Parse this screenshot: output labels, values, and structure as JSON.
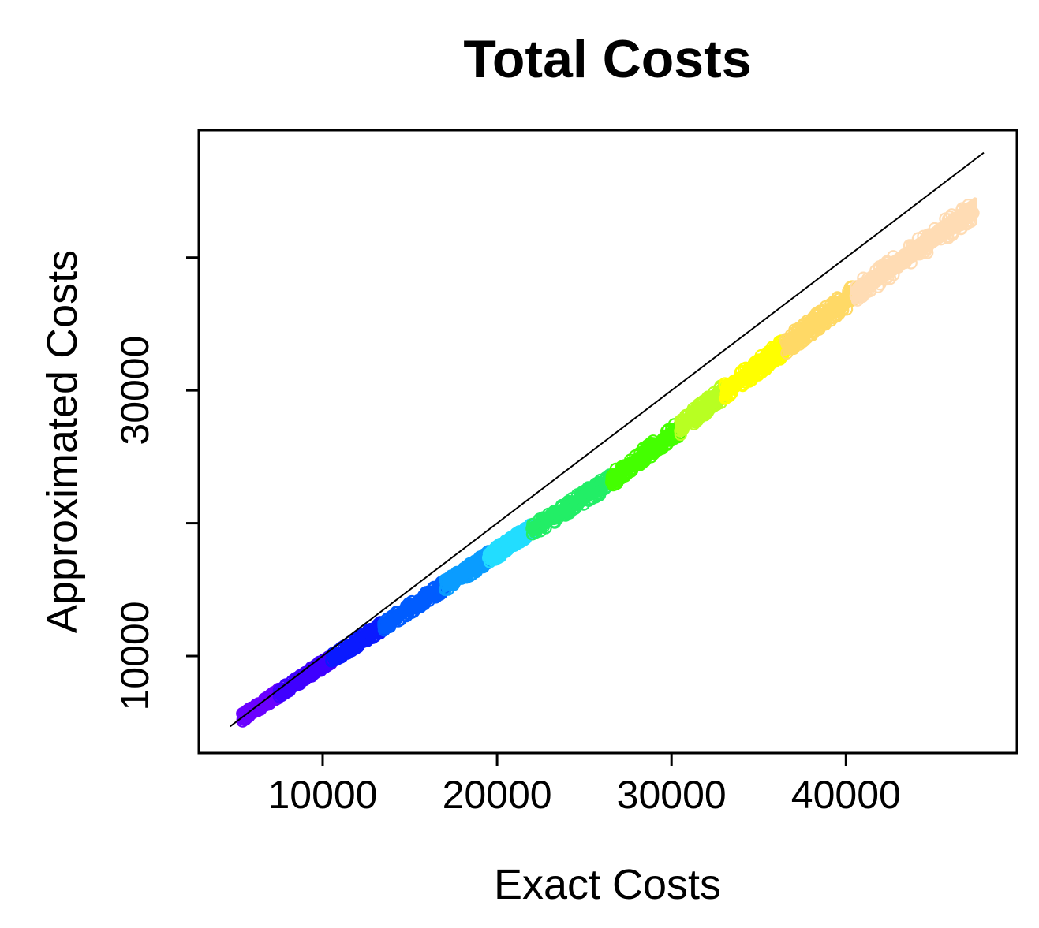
{
  "chart_data": {
    "type": "scatter",
    "title": "Total Costs",
    "xlabel": "Exact Costs",
    "ylabel": "Approximated Costs",
    "xlim": [
      2900,
      49800
    ],
    "ylim": [
      2700,
      49600
    ],
    "x_ticks": [
      10000,
      20000,
      30000,
      40000
    ],
    "x_tick_labels": [
      "10000",
      "20000",
      "30000",
      "40000"
    ],
    "y_ticks": [
      10000,
      20000,
      30000,
      40000
    ],
    "y_tick_labels": [
      "10000",
      "",
      "30000",
      ""
    ],
    "reference_line": {
      "type": "identity",
      "from": 4700,
      "to": 47900,
      "color": "#000000"
    },
    "point_bands": [
      {
        "x_range": [
          5400,
          7500
        ],
        "y_range": [
          5400,
          7200
        ],
        "color": "#6a00ff"
      },
      {
        "x_range": [
          7500,
          10500
        ],
        "y_range": [
          7200,
          9800
        ],
        "color": "#3f00ff"
      },
      {
        "x_range": [
          10500,
          13500
        ],
        "y_range": [
          9800,
          12300
        ],
        "color": "#0a1aff"
      },
      {
        "x_range": [
          13500,
          17000
        ],
        "y_range": [
          12300,
          15300
        ],
        "color": "#005cff"
      },
      {
        "x_range": [
          17000,
          19500
        ],
        "y_range": [
          15300,
          17400
        ],
        "color": "#0a9cff"
      },
      {
        "x_range": [
          19500,
          22000
        ],
        "y_range": [
          17400,
          19500
        ],
        "color": "#22ddff"
      },
      {
        "x_range": [
          22000,
          26500
        ],
        "y_range": [
          19500,
          23200
        ],
        "color": "#22ee66"
      },
      {
        "x_range": [
          26500,
          30500
        ],
        "y_range": [
          23200,
          27200
        ],
        "color": "#44ff00"
      },
      {
        "x_range": [
          30500,
          33000
        ],
        "y_range": [
          27200,
          29900
        ],
        "color": "#b8ff22"
      },
      {
        "x_range": [
          33000,
          36500
        ],
        "y_range": [
          29900,
          33300
        ],
        "color": "#ffff00"
      },
      {
        "x_range": [
          36500,
          40500
        ],
        "y_range": [
          33300,
          37300
        ],
        "color": "#ffd966"
      },
      {
        "x_range": [
          40500,
          47400
        ],
        "y_range": [
          37300,
          43700
        ],
        "color": "#ffdcb4"
      }
    ]
  }
}
